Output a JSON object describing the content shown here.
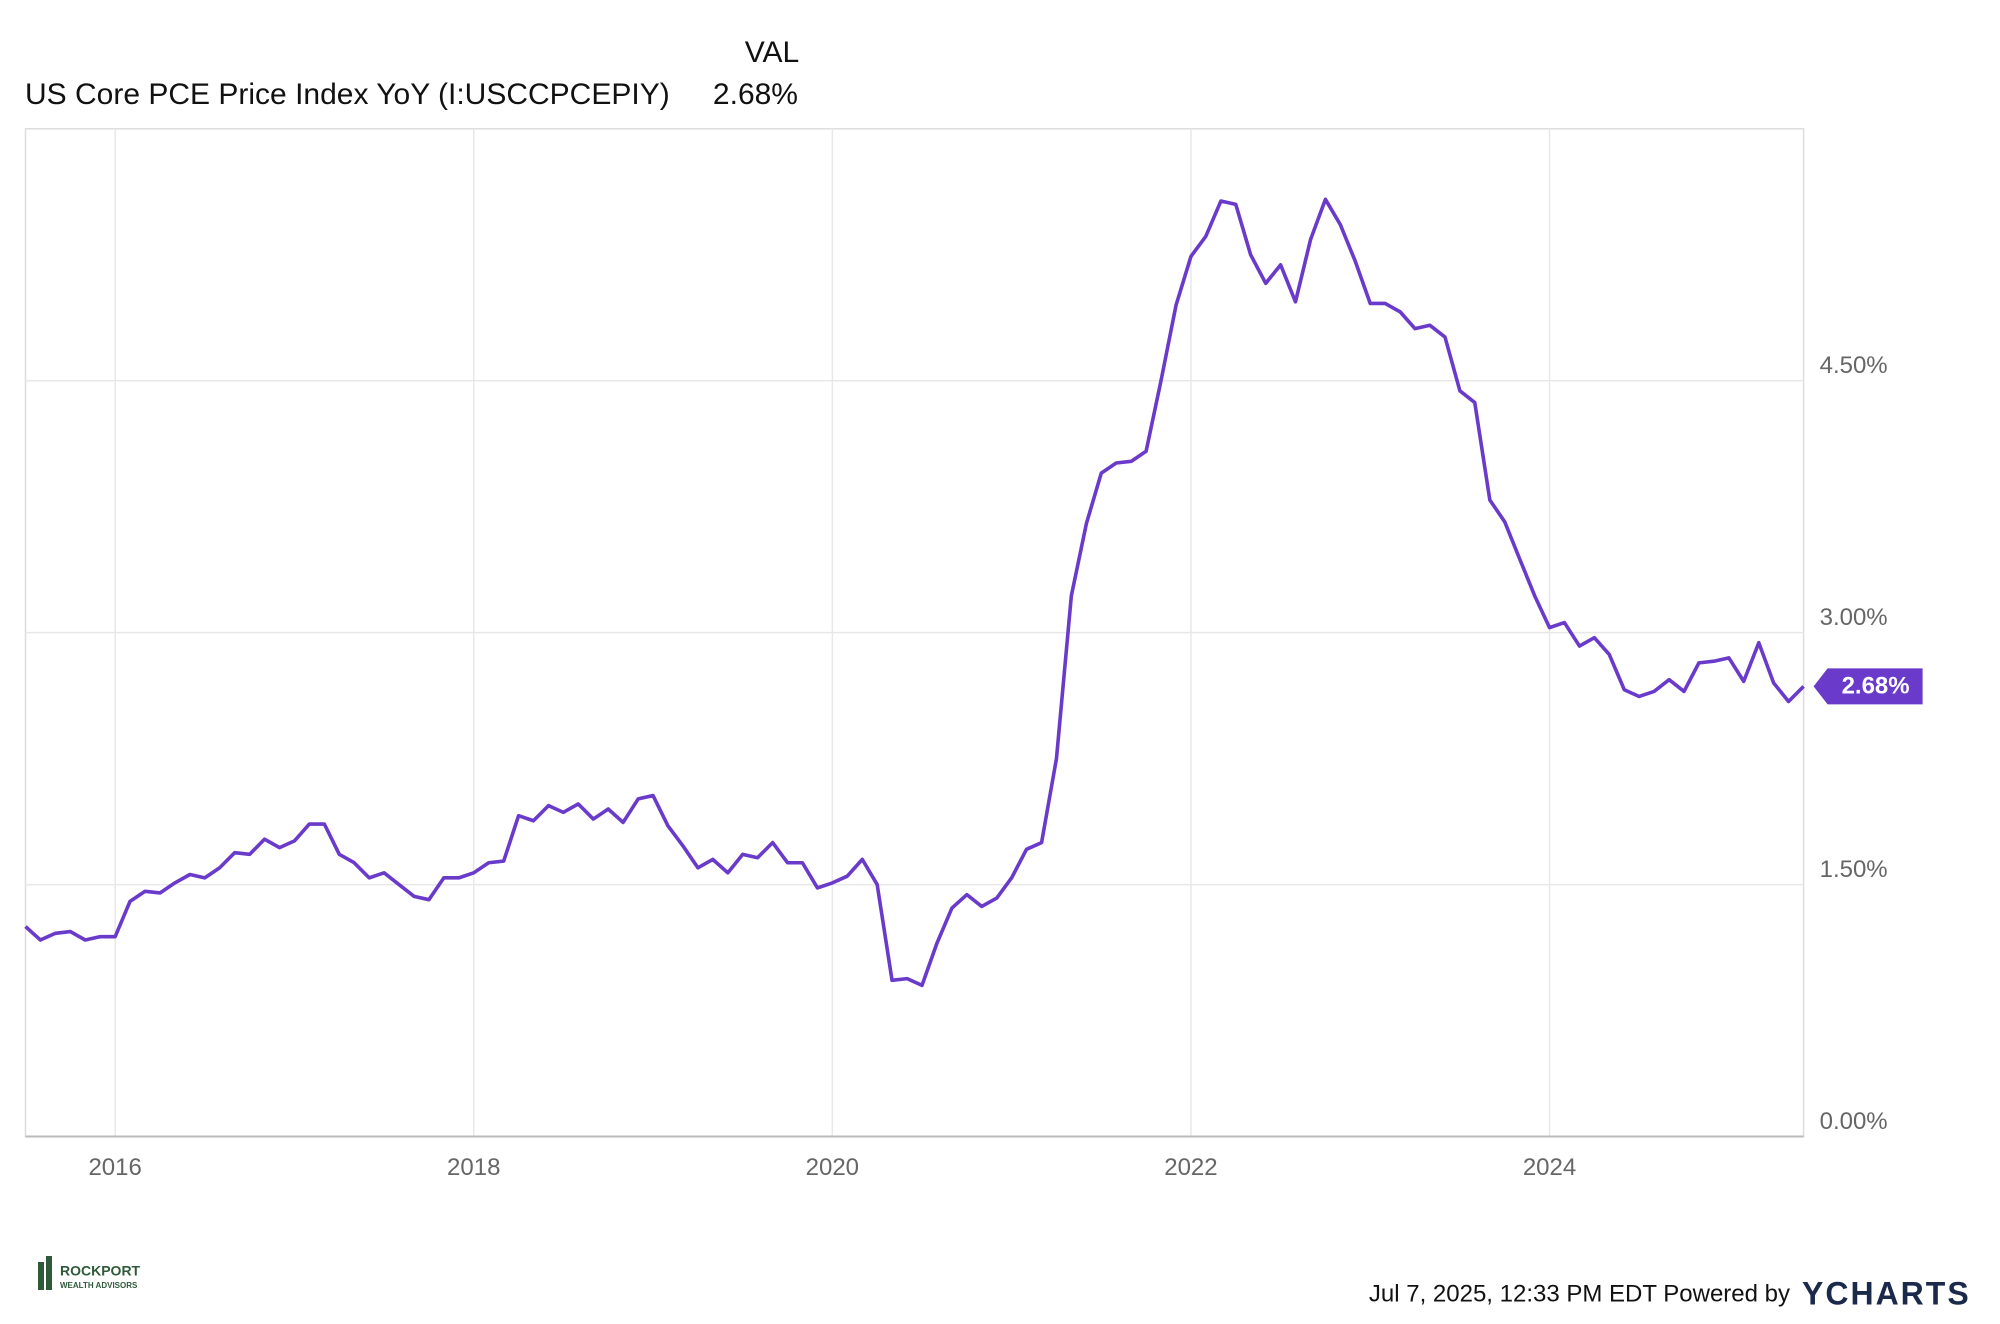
{
  "chart_data": {
    "type": "line",
    "value_header": "VAL",
    "series": [
      {
        "name": "US Core PCE Price Index YoY (I:USCCPCEPIY)",
        "color": "#6a3acb",
        "last_value_label": "2.68%",
        "values": [
          1.25,
          1.17,
          1.21,
          1.22,
          1.17,
          1.19,
          1.19,
          1.4,
          1.46,
          1.45,
          1.51,
          1.56,
          1.54,
          1.6,
          1.69,
          1.68,
          1.77,
          1.72,
          1.76,
          1.86,
          1.86,
          1.68,
          1.63,
          1.54,
          1.57,
          1.5,
          1.43,
          1.41,
          1.54,
          1.54,
          1.57,
          1.63,
          1.64,
          1.91,
          1.88,
          1.97,
          1.93,
          1.98,
          1.89,
          1.95,
          1.87,
          2.01,
          2.03,
          1.85,
          1.73,
          1.6,
          1.65,
          1.57,
          1.68,
          1.66,
          1.75,
          1.63,
          1.63,
          1.48,
          1.51,
          1.55,
          1.65,
          1.5,
          0.93,
          0.94,
          0.9,
          1.15,
          1.36,
          1.44,
          1.37,
          1.42,
          1.54,
          1.71,
          1.75,
          2.25,
          3.22,
          3.65,
          3.95,
          4.01,
          4.02,
          4.08,
          4.5,
          4.95,
          5.24,
          5.36,
          5.57,
          5.55,
          5.25,
          5.08,
          5.19,
          4.97,
          5.34,
          5.58,
          5.43,
          5.21,
          4.96,
          4.96,
          4.91,
          4.81,
          4.83,
          4.76,
          4.44,
          4.37,
          3.79,
          3.66,
          3.44,
          3.22,
          3.03,
          3.06,
          2.92,
          2.97,
          2.87,
          2.66,
          2.62,
          2.65,
          2.72,
          2.65,
          2.82,
          2.83,
          2.85,
          2.71,
          2.94,
          2.7,
          2.59,
          2.68
        ]
      }
    ],
    "x": [
      2015.5,
      2015.583,
      2015.667,
      2015.75,
      2015.833,
      2015.917,
      2016,
      2016.083,
      2016.167,
      2016.25,
      2016.333,
      2016.417,
      2016.5,
      2016.583,
      2016.667,
      2016.75,
      2016.833,
      2016.917,
      2017,
      2017.083,
      2017.167,
      2017.25,
      2017.333,
      2017.417,
      2017.5,
      2017.583,
      2017.667,
      2017.75,
      2017.833,
      2017.917,
      2018,
      2018.083,
      2018.167,
      2018.25,
      2018.333,
      2018.417,
      2018.5,
      2018.583,
      2018.667,
      2018.75,
      2018.833,
      2018.917,
      2019,
      2019.083,
      2019.167,
      2019.25,
      2019.333,
      2019.417,
      2019.5,
      2019.583,
      2019.667,
      2019.75,
      2019.833,
      2019.917,
      2020,
      2020.083,
      2020.167,
      2020.25,
      2020.333,
      2020.417,
      2020.5,
      2020.583,
      2020.667,
      2020.75,
      2020.833,
      2020.917,
      2021,
      2021.083,
      2021.167,
      2021.25,
      2021.333,
      2021.417,
      2021.5,
      2021.583,
      2021.667,
      2021.75,
      2021.833,
      2021.917,
      2022,
      2022.083,
      2022.167,
      2022.25,
      2022.333,
      2022.417,
      2022.5,
      2022.583,
      2022.667,
      2022.75,
      2022.833,
      2022.917,
      2023,
      2023.083,
      2023.167,
      2023.25,
      2023.333,
      2023.417,
      2023.5,
      2023.583,
      2023.667,
      2023.75,
      2023.833,
      2023.917,
      2024,
      2024.083,
      2024.167,
      2024.25,
      2024.333,
      2024.417,
      2024.5,
      2024.583,
      2024.667,
      2024.75,
      2024.833,
      2024.917,
      2025,
      2025.083,
      2025.167,
      2025.25,
      2025.333,
      2025.417
    ],
    "xlim": [
      2015.5,
      2025.417
    ],
    "xticks": [
      2016,
      2018,
      2020,
      2022,
      2024
    ],
    "ylim": [
      0,
      6
    ],
    "yticks": [
      {
        "value": 0,
        "label": "0.00%"
      },
      {
        "value": 1.5,
        "label": "1.50%"
      },
      {
        "value": 3,
        "label": "3.00%"
      },
      {
        "value": 4.5,
        "label": "4.50%"
      }
    ],
    "grid": true,
    "footer": {
      "timestamp": "Jul 7, 2025, 12:33 PM EDT Powered by",
      "brand": "YCHARTS",
      "logo_name": "ROCKPORT",
      "logo_sub": "WEALTH ADVISORS"
    }
  }
}
